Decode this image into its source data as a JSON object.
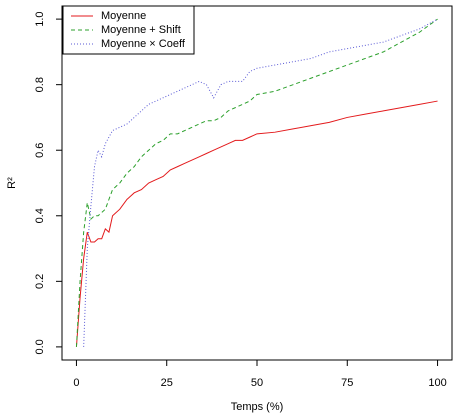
{
  "chart_data": {
    "type": "line",
    "xlabel": "Temps (%)",
    "ylabel": "R²",
    "x": [
      0,
      1,
      2,
      3,
      4,
      5,
      6,
      7,
      8,
      9,
      10,
      12,
      14,
      16,
      18,
      20,
      22,
      24,
      26,
      28,
      30,
      32,
      34,
      36,
      38,
      40,
      42,
      44,
      46,
      48,
      50,
      55,
      60,
      65,
      70,
      75,
      80,
      85,
      90,
      95,
      100
    ],
    "series": [
      {
        "name": "Moyenne",
        "color": "#e31a1c",
        "style": "solid",
        "values": [
          0,
          0.15,
          0.27,
          0.35,
          0.32,
          0.32,
          0.33,
          0.33,
          0.36,
          0.35,
          0.4,
          0.42,
          0.45,
          0.47,
          0.48,
          0.5,
          0.51,
          0.52,
          0.54,
          0.55,
          0.56,
          0.57,
          0.58,
          0.59,
          0.6,
          0.61,
          0.62,
          0.63,
          0.63,
          0.64,
          0.65,
          0.655,
          0.665,
          0.675,
          0.685,
          0.7,
          0.71,
          0.72,
          0.73,
          0.74,
          0.75
        ]
      },
      {
        "name": "Moyenne + Shift",
        "color": "#2ca02c",
        "style": "dashed",
        "values": [
          0,
          0.2,
          0.35,
          0.44,
          0.39,
          0.4,
          0.4,
          0.41,
          0.42,
          0.45,
          0.48,
          0.5,
          0.53,
          0.55,
          0.58,
          0.6,
          0.62,
          0.63,
          0.65,
          0.65,
          0.66,
          0.67,
          0.68,
          0.69,
          0.69,
          0.7,
          0.72,
          0.73,
          0.74,
          0.75,
          0.77,
          0.78,
          0.8,
          0.82,
          0.84,
          0.86,
          0.88,
          0.9,
          0.93,
          0.96,
          1.0
        ]
      },
      {
        "name": "Moyenne × Coeff",
        "color": "#5a5ad6",
        "style": "dotted",
        "values": [
          null,
          null,
          0,
          0.3,
          0.43,
          0.55,
          0.6,
          0.58,
          0.62,
          0.64,
          0.66,
          0.67,
          0.68,
          0.7,
          0.72,
          0.74,
          0.75,
          0.76,
          0.77,
          0.78,
          0.79,
          0.8,
          0.81,
          0.8,
          0.76,
          0.8,
          0.81,
          0.81,
          0.81,
          0.84,
          0.85,
          0.86,
          0.87,
          0.88,
          0.9,
          0.91,
          0.92,
          0.93,
          0.95,
          0.97,
          1.0
        ]
      }
    ],
    "xlim": [
      -4,
      104
    ],
    "ylim": [
      -0.04,
      1.04
    ],
    "xticks": [
      0,
      25,
      50,
      75,
      100
    ],
    "yticks": [
      {
        "value": 0,
        "label": "0.0"
      },
      0.2,
      0.4,
      0.6,
      0.8,
      {
        "value": 1,
        "label": "1.0"
      }
    ],
    "legend": "top-left"
  }
}
